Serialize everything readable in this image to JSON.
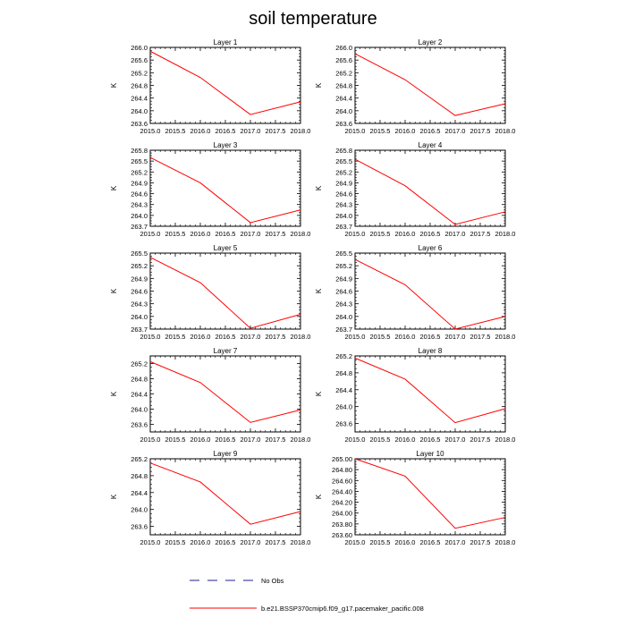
{
  "title": "soil temperature",
  "colors": {
    "model": "#ff0000",
    "obs": "#1f1f8f",
    "axis": "#000000"
  },
  "legend": [
    {
      "label": "No Obs",
      "style": "dashed",
      "color": "#1f1f8f"
    },
    {
      "label": "b.e21.BSSP370cmip6.f09_g17.pacemaker_pacific.008",
      "style": "solid",
      "color": "#ff0000"
    }
  ],
  "chart_data": [
    {
      "type": "line",
      "title": "Layer 1",
      "ylabel": "K",
      "xticks": [
        "2015.0",
        "2015.5",
        "2016.0",
        "2016.5",
        "2017.0",
        "2017.5",
        "2018.0"
      ],
      "xlim": [
        2015.0,
        2018.0
      ],
      "yticks": [
        "263.6",
        "264.0",
        "264.4",
        "264.8",
        "265.2",
        "265.6",
        "266.0"
      ],
      "ylim": [
        263.6,
        266.0
      ],
      "series": [
        {
          "x": [
            2015.0,
            2016.0,
            2017.0,
            2018.0
          ],
          "y": [
            265.88,
            265.05,
            263.88,
            264.28
          ]
        }
      ]
    },
    {
      "type": "line",
      "title": "Layer 2",
      "ylabel": "K",
      "xticks": [
        "2015.0",
        "2015.5",
        "2016.0",
        "2016.5",
        "2017.0",
        "2017.5",
        "2018.0"
      ],
      "xlim": [
        2015.0,
        2018.0
      ],
      "yticks": [
        "263.6",
        "264.0",
        "264.4",
        "264.8",
        "265.2",
        "265.6",
        "266.0"
      ],
      "ylim": [
        263.6,
        266.0
      ],
      "series": [
        {
          "x": [
            2015.0,
            2016.0,
            2017.0,
            2018.0
          ],
          "y": [
            265.8,
            264.98,
            263.85,
            264.22
          ]
        }
      ]
    },
    {
      "type": "line",
      "title": "Layer 3",
      "ylabel": "K",
      "xticks": [
        "2015.0",
        "2015.5",
        "2016.0",
        "2016.5",
        "2017.0",
        "2017.5",
        "2018.0"
      ],
      "xlim": [
        2015.0,
        2018.0
      ],
      "yticks": [
        "263.7",
        "264.0",
        "264.3",
        "264.6",
        "264.9",
        "265.2",
        "265.5",
        "265.8"
      ],
      "ylim": [
        263.7,
        265.8
      ],
      "series": [
        {
          "x": [
            2015.0,
            2016.0,
            2017.0,
            2018.0
          ],
          "y": [
            265.6,
            264.9,
            263.8,
            264.15
          ]
        }
      ]
    },
    {
      "type": "line",
      "title": "Layer 4",
      "ylabel": "K",
      "xticks": [
        "2015.0",
        "2015.5",
        "2016.0",
        "2016.5",
        "2017.0",
        "2017.5",
        "2018.0"
      ],
      "xlim": [
        2015.0,
        2018.0
      ],
      "yticks": [
        "263.7",
        "264.0",
        "264.3",
        "264.6",
        "264.9",
        "265.2",
        "265.5",
        "265.8"
      ],
      "ylim": [
        263.7,
        265.8
      ],
      "series": [
        {
          "x": [
            2015.0,
            2016.0,
            2017.0,
            2018.0
          ],
          "y": [
            265.55,
            264.82,
            263.75,
            264.1
          ]
        }
      ]
    },
    {
      "type": "line",
      "title": "Layer 5",
      "ylabel": "K",
      "xticks": [
        "2015.0",
        "2015.5",
        "2016.0",
        "2016.5",
        "2017.0",
        "2017.5",
        "2018.0"
      ],
      "xlim": [
        2015.0,
        2018.0
      ],
      "yticks": [
        "263.7",
        "264.0",
        "264.3",
        "264.6",
        "264.9",
        "265.2",
        "265.5"
      ],
      "ylim": [
        263.7,
        265.5
      ],
      "series": [
        {
          "x": [
            2015.0,
            2016.0,
            2017.0,
            2018.0
          ],
          "y": [
            265.4,
            264.8,
            263.72,
            264.05
          ]
        }
      ]
    },
    {
      "type": "line",
      "title": "Layer 6",
      "ylabel": "K",
      "xticks": [
        "2015.0",
        "2015.5",
        "2016.0",
        "2016.5",
        "2017.0",
        "2017.5",
        "2018.0"
      ],
      "xlim": [
        2015.0,
        2018.0
      ],
      "yticks": [
        "263.7",
        "264.0",
        "264.3",
        "264.6",
        "264.9",
        "265.2",
        "265.5"
      ],
      "ylim": [
        263.7,
        265.5
      ],
      "series": [
        {
          "x": [
            2015.0,
            2016.0,
            2017.0,
            2018.0
          ],
          "y": [
            265.35,
            264.75,
            263.7,
            264.0
          ]
        }
      ]
    },
    {
      "type": "line",
      "title": "Layer 7",
      "ylabel": "K",
      "xticks": [
        "2015.0",
        "2015.5",
        "2016.0",
        "2016.5",
        "2017.0",
        "2017.5",
        "2018.0"
      ],
      "xlim": [
        2015.0,
        2018.0
      ],
      "yticks": [
        "263.6",
        "264.0",
        "264.4",
        "264.8",
        "265.2"
      ],
      "ylim": [
        263.4,
        265.4
      ],
      "series": [
        {
          "x": [
            2015.0,
            2016.0,
            2017.0,
            2018.0
          ],
          "y": [
            265.25,
            264.7,
            263.65,
            263.98
          ]
        }
      ]
    },
    {
      "type": "line",
      "title": "Layer 8",
      "ylabel": "K",
      "xticks": [
        "2015.0",
        "2015.5",
        "2016.0",
        "2016.5",
        "2017.0",
        "2017.5",
        "2018.0"
      ],
      "xlim": [
        2015.0,
        2018.0
      ],
      "yticks": [
        "263.6",
        "264.0",
        "264.4",
        "264.8",
        "265.2"
      ],
      "ylim": [
        263.4,
        265.2
      ],
      "series": [
        {
          "x": [
            2015.0,
            2016.0,
            2017.0,
            2018.0
          ],
          "y": [
            265.15,
            264.65,
            263.62,
            263.95
          ]
        }
      ]
    },
    {
      "type": "line",
      "title": "Layer 9",
      "ylabel": "K",
      "xticks": [
        "2015.0",
        "2015.5",
        "2016.0",
        "2016.5",
        "2017.0",
        "2017.5",
        "2018.0"
      ],
      "xlim": [
        2015.0,
        2018.0
      ],
      "yticks": [
        "263.6",
        "264.0",
        "264.4",
        "264.8",
        "265.2"
      ],
      "ylim": [
        263.4,
        265.2
      ],
      "series": [
        {
          "x": [
            2015.0,
            2016.0,
            2017.0,
            2018.0
          ],
          "y": [
            265.1,
            264.65,
            263.65,
            263.95
          ]
        }
      ]
    },
    {
      "type": "line",
      "title": "Layer 10",
      "ylabel": "K",
      "xticks": [
        "2015.0",
        "2015.5",
        "2016.0",
        "2016.5",
        "2017.0",
        "2017.5",
        "2018.0"
      ],
      "xlim": [
        2015.0,
        2018.0
      ],
      "yticks": [
        "263.60",
        "263.80",
        "264.00",
        "264.20",
        "264.40",
        "264.60",
        "264.80",
        "265.00"
      ],
      "ylim": [
        263.6,
        265.0
      ],
      "series": [
        {
          "x": [
            2015.0,
            2016.0,
            2017.0,
            2018.0
          ],
          "y": [
            265.0,
            264.68,
            263.72,
            263.92
          ]
        }
      ]
    }
  ]
}
